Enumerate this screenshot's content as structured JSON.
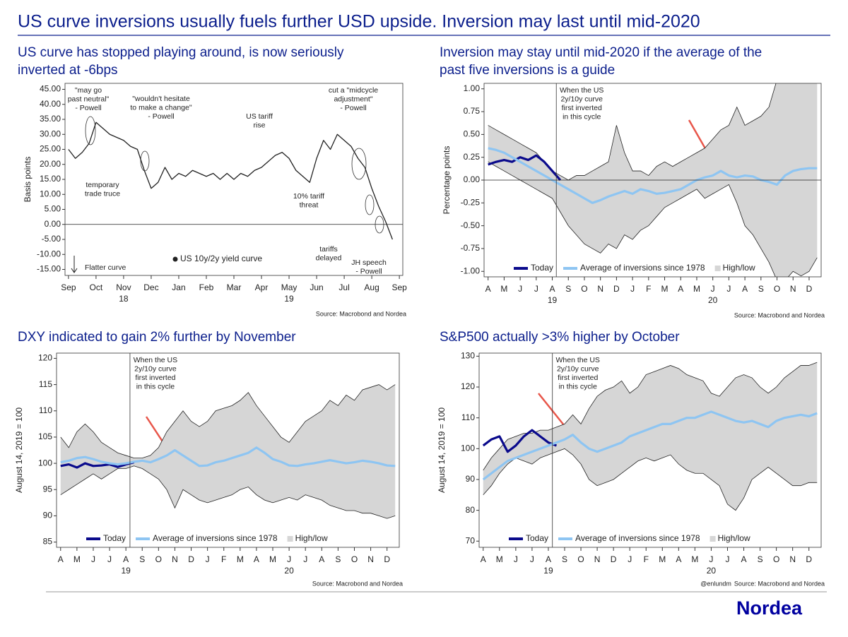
{
  "title": "US curve inversions usually fuels further USD upside. Inversion may last until mid-2020",
  "brand": "Nordea",
  "chart_data": [
    {
      "type": "line",
      "subtitle": [
        "US curve has stopped playing around, is now seriously",
        "inverted at -6bps"
      ],
      "ylabel": "Basis points",
      "ylim": [
        -17,
        47
      ],
      "yticks": [
        {
          "value": -15,
          "label": "-15.00"
        },
        {
          "value": -10,
          "label": "-10.00"
        },
        {
          "value": -5,
          "label": "-5.00"
        },
        {
          "value": 0,
          "label": "0.00"
        },
        {
          "value": 5,
          "label": "5.00"
        },
        {
          "value": 10,
          "label": "10.00"
        },
        {
          "value": 15,
          "label": "15.00"
        },
        {
          "value": 20,
          "label": "20.00"
        },
        {
          "value": 25,
          "label": "25.00"
        },
        {
          "value": 30,
          "label": "30.00"
        },
        {
          "value": 35,
          "label": "35.00"
        },
        {
          "value": 40,
          "label": "40.00"
        },
        {
          "value": 45,
          "label": "45.00"
        }
      ],
      "categories": [
        "Sep",
        null,
        null,
        null,
        "Oct",
        null,
        null,
        null,
        "Nov",
        null,
        null,
        null,
        "Dec",
        null,
        null,
        null,
        "Jan",
        null,
        null,
        null,
        "Feb",
        null,
        null,
        null,
        "Mar",
        null,
        null,
        null,
        "Apr",
        null,
        null,
        null,
        "May",
        null,
        null,
        null,
        "Jun",
        null,
        null,
        null,
        "Jul",
        null,
        null,
        null,
        "Aug",
        null,
        null,
        null,
        "Sep"
      ],
      "x_year_labels": [
        "18",
        "19"
      ],
      "series": [
        {
          "name": "US 10y/2y yield curve",
          "color": "#222222",
          "values": [
            25,
            22,
            24,
            27,
            34,
            32,
            30,
            29,
            28,
            26,
            25,
            18,
            12,
            14,
            19,
            15,
            17,
            16,
            18,
            17,
            16,
            17,
            15,
            17,
            15,
            17,
            16,
            18,
            19,
            21,
            23,
            24,
            22,
            18,
            16,
            14,
            22,
            28,
            25,
            30,
            28,
            26,
            22,
            19,
            12,
            6,
            1,
            -5,
            null
          ]
        }
      ],
      "annotations": [
        [
          "\"may go",
          "past neutral\"",
          "- Powell"
        ],
        [
          "\"wouldn't hesitate",
          "to make a change\"",
          "- Powell"
        ],
        [
          "US tariff",
          "rise"
        ],
        [
          "cut a \"midcycle",
          "adjustment\"",
          "- Powell"
        ],
        [
          "temporary",
          "trade truce"
        ],
        [
          "10% tariff",
          "threat"
        ],
        [
          "tariffs",
          "delayed"
        ],
        [
          "JH speech",
          "- Powell"
        ],
        [
          "Flatter curve"
        ]
      ],
      "source": "Source: Macrobond and Nordea"
    },
    {
      "type": "line",
      "subtitle": [
        "Inversion may stay until mid-2020 if the average of the",
        "past five inversions is a guide"
      ],
      "ylabel": "Percentage points",
      "ylim": [
        -1.06,
        1.06
      ],
      "yticks": [
        {
          "value": -1,
          "label": "-1.00"
        },
        {
          "value": -0.75,
          "label": "-0.75"
        },
        {
          "value": -0.5,
          "label": "-0.50"
        },
        {
          "value": -0.25,
          "label": "-0.25"
        },
        {
          "value": 0,
          "label": "0.00"
        },
        {
          "value": 0.25,
          "label": "0.25"
        },
        {
          "value": 0.5,
          "label": "0.50"
        },
        {
          "value": 0.75,
          "label": "0.75"
        },
        {
          "value": 1,
          "label": "1.00"
        }
      ],
      "categories": [
        "A",
        null,
        "M",
        null,
        "J",
        null,
        "J",
        null,
        "A",
        null,
        "S",
        null,
        "O",
        null,
        "N",
        null,
        "D",
        null,
        "J",
        null,
        "F",
        null,
        "M",
        null,
        "A",
        null,
        "M",
        null,
        "J",
        null,
        "J",
        null,
        "A",
        null,
        "S",
        null,
        "O",
        null,
        "N",
        null,
        "D",
        null
      ],
      "x_year_labels": [
        "19",
        "20"
      ],
      "band": {
        "name": "High/low",
        "color": "#d6d6d6",
        "high": [
          0.6,
          0.55,
          0.5,
          0.45,
          0.4,
          0.35,
          0.3,
          0.2,
          0.1,
          0.05,
          0,
          0.05,
          0.05,
          0.1,
          0.15,
          0.2,
          0.6,
          0.3,
          0.1,
          0.1,
          0.05,
          0.15,
          0.2,
          0.15,
          0.2,
          0.25,
          0.3,
          0.35,
          0.45,
          0.55,
          0.6,
          0.8,
          0.6,
          0.65,
          0.7,
          0.8,
          1.1,
          1.1,
          1.1,
          1.1,
          1.1,
          1.1
        ],
        "low": [
          0.2,
          0.15,
          0.1,
          0.05,
          0,
          -0.05,
          -0.1,
          -0.15,
          -0.2,
          -0.35,
          -0.5,
          -0.6,
          -0.7,
          -0.75,
          -0.8,
          -0.7,
          -0.75,
          -0.6,
          -0.65,
          -0.55,
          -0.5,
          -0.4,
          -0.3,
          -0.25,
          -0.2,
          -0.15,
          -0.1,
          -0.2,
          -0.15,
          -0.1,
          -0.05,
          -0.25,
          -0.5,
          -0.6,
          -0.75,
          -0.9,
          -1.1,
          -1.1,
          -1,
          -1.05,
          -1,
          -0.85
        ]
      },
      "series": [
        {
          "name": "Today",
          "color": "#0a0a8c",
          "values": [
            0.17,
            0.2,
            0.22,
            0.2,
            0.25,
            0.22,
            0.27,
            0.2,
            0.1,
            0,
            null,
            null,
            null,
            null,
            null,
            null,
            null,
            null,
            null,
            null,
            null,
            null,
            null,
            null,
            null,
            null,
            null,
            null,
            null,
            null,
            null,
            null,
            null,
            null,
            null,
            null,
            null,
            null,
            null,
            null,
            null,
            null
          ]
        },
        {
          "name": "Average of inversions since 1978",
          "color": "#8ec5f2",
          "values": [
            0.35,
            0.33,
            0.3,
            0.25,
            0.2,
            0.15,
            0.1,
            0.05,
            0,
            -0.05,
            -0.1,
            -0.15,
            -0.2,
            -0.25,
            -0.22,
            -0.18,
            -0.15,
            -0.12,
            -0.15,
            -0.1,
            -0.12,
            -0.15,
            -0.14,
            -0.12,
            -0.1,
            -0.05,
            0,
            0.03,
            0.05,
            0.1,
            0.05,
            0.03,
            0.05,
            0.04,
            0,
            -0.02,
            -0.05,
            0.05,
            0.1,
            0.12,
            0.13,
            0.13
          ]
        }
      ],
      "annotations": [
        [
          "When the US",
          "2y/10y curve",
          "first inverted",
          "in this cycle"
        ]
      ],
      "source": "Source: Macrobond and Nordea"
    },
    {
      "type": "line",
      "subtitle": [
        "DXY indicated to gain 2% further by November"
      ],
      "ylabel": "August 14, 2019 = 100",
      "ylim": [
        84,
        121
      ],
      "yticks": [
        85,
        90,
        95,
        100,
        105,
        110,
        115,
        120
      ],
      "categories": [
        "A",
        null,
        "M",
        null,
        "J",
        null,
        "J",
        null,
        "A",
        null,
        "S",
        null,
        "O",
        null,
        "N",
        null,
        "D",
        null,
        "J",
        null,
        "F",
        null,
        "M",
        null,
        "A",
        null,
        "M",
        null,
        "J",
        null,
        "J",
        null,
        "A",
        null,
        "S",
        null,
        "O",
        null,
        "N",
        null,
        "D",
        null
      ],
      "x_year_labels": [
        "19",
        "20"
      ],
      "band": {
        "name": "High/low",
        "color": "#d6d6d6",
        "high": [
          105,
          103,
          106,
          107.5,
          106,
          104,
          103,
          102,
          101.5,
          101,
          101,
          101.5,
          103,
          106,
          108,
          110,
          108,
          107,
          108,
          110,
          110.5,
          111,
          112,
          113.5,
          111,
          109,
          107,
          105,
          104,
          106,
          108,
          109,
          110,
          112,
          111,
          113,
          112,
          114,
          114.5,
          115,
          114,
          115
        ],
        "low": [
          94,
          95,
          96,
          97,
          98,
          97,
          98,
          99,
          99,
          99.5,
          99,
          98,
          97,
          95,
          91.5,
          95,
          94,
          93,
          92.5,
          93,
          93.5,
          94,
          95,
          95.5,
          94,
          93,
          92.5,
          93,
          93.5,
          93,
          94,
          93.5,
          93,
          92,
          91.5,
          91,
          91,
          90.5,
          90.5,
          90,
          89.5,
          90
        ]
      },
      "series": [
        {
          "name": "Today",
          "color": "#0a0a8c",
          "values": [
            99.5,
            99.8,
            99.2,
            100,
            99.5,
            99.6,
            99.8,
            99.3,
            99.8,
            100.2,
            null,
            null,
            null,
            null,
            null,
            null,
            null,
            null,
            null,
            null,
            null,
            null,
            null,
            null,
            null,
            null,
            null,
            null,
            null,
            null,
            null,
            null,
            null,
            null,
            null,
            null,
            null,
            null,
            null,
            null,
            null,
            null
          ]
        },
        {
          "name": "Average of inversions since 1978",
          "color": "#8ec5f2",
          "values": [
            100.2,
            100.5,
            101,
            101.2,
            100.8,
            100.3,
            100,
            99.8,
            100,
            100.3,
            100.5,
            100.2,
            100.8,
            101.5,
            102.5,
            101.5,
            100.5,
            99.5,
            99.6,
            100.2,
            100.5,
            101,
            101.5,
            102,
            103,
            102,
            100.8,
            100.3,
            99.6,
            99.5,
            99.8,
            100,
            100.3,
            100.6,
            100.3,
            100,
            100.2,
            100.5,
            100.3,
            100,
            99.6,
            99.5
          ]
        }
      ],
      "annotations": [
        [
          "When the US",
          "2y/10y curve",
          "first inverted",
          "in this cycle"
        ]
      ],
      "source": "Source: Macrobond and Nordea"
    },
    {
      "type": "line",
      "subtitle": [
        "S&P500 actually >3% higher by October"
      ],
      "ylabel": "August 14, 2019 = 100",
      "ylim": [
        68,
        131
      ],
      "yticks": [
        70,
        80,
        90,
        100,
        110,
        120,
        130
      ],
      "categories": [
        "A",
        null,
        "M",
        null,
        "J",
        null,
        "J",
        null,
        "A",
        null,
        "S",
        null,
        "O",
        null,
        "N",
        null,
        "D",
        null,
        "J",
        null,
        "F",
        null,
        "M",
        null,
        "A",
        null,
        "M",
        null,
        "J",
        null,
        "J",
        null,
        "A",
        null,
        "S",
        null,
        "O",
        null,
        "N",
        null,
        "D",
        null
      ],
      "x_year_labels": [
        "19",
        "20"
      ],
      "band": {
        "name": "High/low",
        "color": "#d6d6d6",
        "high": [
          93,
          97,
          100,
          103,
          104,
          105,
          105,
          106,
          106,
          107,
          108,
          111,
          108,
          113,
          117,
          119,
          120,
          122,
          118,
          120,
          124,
          125,
          126,
          127,
          126,
          124,
          123,
          122,
          118,
          117,
          120,
          123,
          124,
          123,
          120,
          118,
          120,
          123,
          125,
          127,
          127,
          128
        ],
        "low": [
          85,
          88,
          92,
          95,
          97,
          96,
          95,
          97,
          98,
          99,
          100,
          98,
          95,
          90,
          88,
          89,
          90,
          92,
          94,
          96,
          97,
          96,
          97,
          98,
          95,
          93,
          92,
          92,
          90,
          88,
          82,
          80,
          84,
          90,
          92,
          94,
          92,
          90,
          88,
          88,
          89,
          89
        ]
      },
      "series": [
        {
          "name": "Today",
          "color": "#0a0a8c",
          "values": [
            101,
            103,
            104,
            99,
            101,
            104,
            106,
            104,
            102,
            101,
            null,
            null,
            null,
            null,
            null,
            null,
            null,
            null,
            null,
            null,
            null,
            null,
            null,
            null,
            null,
            null,
            null,
            null,
            null,
            null,
            null,
            null,
            null,
            null,
            null,
            null,
            null,
            null,
            null,
            null,
            null,
            null
          ]
        },
        {
          "name": "Average of inversions since 1978",
          "color": "#8ec5f2",
          "values": [
            90,
            92,
            94,
            96,
            97,
            98,
            99,
            100,
            101,
            102,
            103,
            104.5,
            102,
            100,
            99,
            100,
            101,
            102,
            104,
            105,
            106,
            107,
            108,
            108,
            109,
            110,
            110,
            111,
            112,
            111,
            110,
            109,
            108.5,
            109,
            108,
            107,
            109,
            110,
            110.5,
            111,
            110.5,
            111.5
          ]
        }
      ],
      "annotations": [
        [
          "When the US",
          "2y/10y curve",
          "first inverted",
          "in this cycle"
        ]
      ],
      "credit": "@enlundm",
      "source": "Source: Macrobond and Nordea"
    }
  ]
}
